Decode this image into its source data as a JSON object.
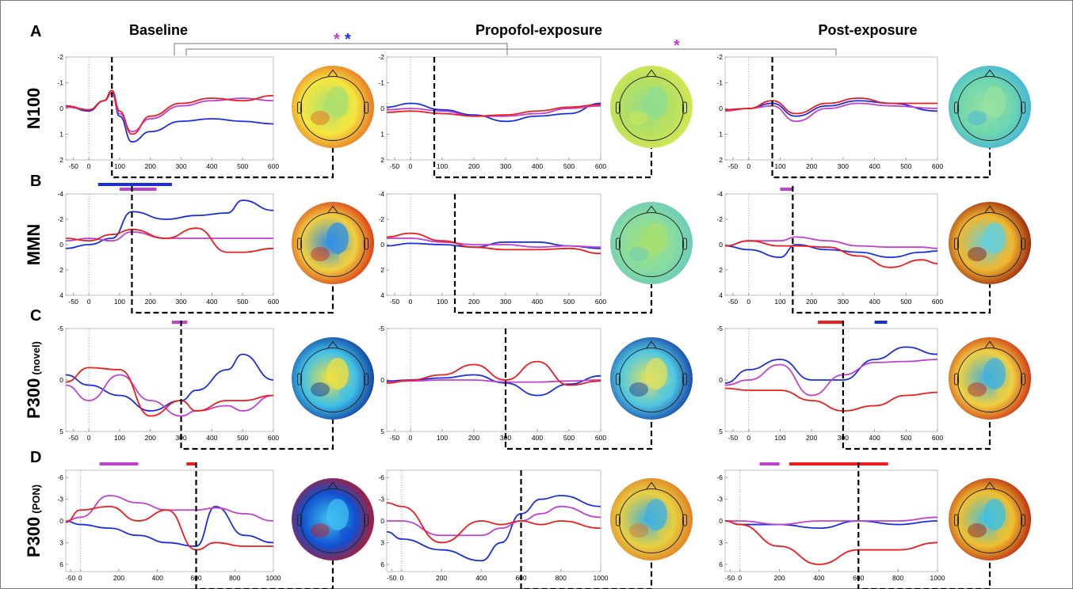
{
  "headers": {
    "baseline": "Baseline",
    "propofol": "Propofol-exposure",
    "post": "Post-exposure"
  },
  "rows": [
    {
      "letter": "A",
      "label": "N100",
      "sub": ""
    },
    {
      "letter": "B",
      "label": "MMN",
      "sub": ""
    },
    {
      "letter": "C",
      "label": "P300",
      "sub": "(novel)"
    },
    {
      "letter": "D",
      "label": "P300",
      "sub": "(PON)"
    }
  ],
  "stars": [
    "*",
    "*",
    "*"
  ],
  "colors": {
    "magenta": "#c040d0",
    "blue": "#1a2ee0",
    "red": "#ee1c1c",
    "frame": "#bfbfbf",
    "dash": "#000000"
  },
  "chart_data": [
    {
      "type": "line",
      "row": "N100",
      "condition": "Baseline",
      "xlim": [
        -75,
        600
      ],
      "ylim": [
        -2,
        2
      ],
      "y_reversed": true,
      "xticks": [
        "-50",
        "0",
        "100",
        "200",
        "300",
        "400",
        "500",
        "600"
      ],
      "yticks": [
        "-2",
        "-1",
        "0",
        "1",
        "2"
      ],
      "x": [
        -75,
        0,
        50,
        75,
        100,
        140,
        200,
        300,
        400,
        500,
        600
      ],
      "series": [
        {
          "color": "blue",
          "values": [
            -0.1,
            0.1,
            -0.3,
            -0.6,
            0.3,
            1.3,
            0.9,
            0.5,
            0.4,
            0.5,
            0.6
          ]
        },
        {
          "color": "magenta",
          "values": [
            -0.05,
            0.05,
            -0.3,
            -0.6,
            0.2,
            0.9,
            0.4,
            -0.1,
            -0.3,
            -0.4,
            -0.3
          ]
        },
        {
          "color": "red",
          "values": [
            -0.1,
            0.05,
            -0.3,
            -0.7,
            0.1,
            1.0,
            0.3,
            -0.2,
            -0.4,
            -0.3,
            -0.5
          ]
        }
      ],
      "marker_x": 75,
      "topomap": "n100-baseline"
    },
    {
      "type": "line",
      "row": "N100",
      "condition": "Propofol-exposure",
      "xlim": [
        -75,
        600
      ],
      "ylim": [
        -2,
        2
      ],
      "y_reversed": true,
      "xticks": [
        "-50",
        "0",
        "100",
        "200",
        "300",
        "400",
        "500",
        "600"
      ],
      "yticks": [
        "-2",
        "-1",
        "0",
        "1",
        "2"
      ],
      "x": [
        -75,
        0,
        100,
        200,
        300,
        400,
        500,
        600
      ],
      "series": [
        {
          "color": "blue",
          "values": [
            -0.05,
            -0.2,
            0.05,
            0.25,
            0.5,
            0.3,
            0.2,
            -0.2
          ]
        },
        {
          "color": "magenta",
          "values": [
            0.05,
            0.0,
            0.1,
            0.3,
            0.3,
            0.2,
            0.0,
            -0.1
          ]
        },
        {
          "color": "red",
          "values": [
            0.15,
            0.1,
            0.2,
            0.3,
            0.25,
            0.1,
            -0.05,
            -0.15
          ]
        }
      ],
      "marker_x": 75,
      "topomap": "n100-propofol"
    },
    {
      "type": "line",
      "row": "N100",
      "condition": "Post-exposure",
      "xlim": [
        -75,
        600
      ],
      "ylim": [
        -2,
        2
      ],
      "y_reversed": true,
      "xticks": [
        "-50",
        "0",
        "100",
        "200",
        "300",
        "400",
        "500",
        "600"
      ],
      "yticks": [
        "-2",
        "-1",
        "0",
        "1",
        "2"
      ],
      "x": [
        -75,
        0,
        75,
        150,
        250,
        350,
        450,
        600
      ],
      "series": [
        {
          "color": "blue",
          "values": [
            0.05,
            0.0,
            -0.2,
            0.3,
            -0.1,
            -0.3,
            -0.2,
            0.1
          ]
        },
        {
          "color": "magenta",
          "values": [
            0.1,
            0.0,
            -0.1,
            0.5,
            0.0,
            -0.2,
            -0.1,
            0.0
          ]
        },
        {
          "color": "red",
          "values": [
            0.05,
            0.0,
            -0.3,
            0.2,
            -0.2,
            -0.4,
            -0.2,
            -0.2
          ]
        }
      ],
      "marker_x": 75,
      "topomap": "n100-post"
    },
    {
      "type": "line",
      "row": "MMN",
      "condition": "Baseline",
      "xlim": [
        -75,
        600
      ],
      "ylim": [
        -4,
        4
      ],
      "y_reversed": true,
      "xticks": [
        "-50",
        "0",
        "100",
        "200",
        "300",
        "400",
        "500",
        "600"
      ],
      "yticks": [
        "-4",
        "-2",
        "0",
        "2",
        "4"
      ],
      "x": [
        -75,
        0,
        75,
        140,
        250,
        350,
        450,
        500,
        600
      ],
      "series": [
        {
          "color": "blue",
          "values": [
            0.3,
            0.0,
            -0.5,
            -2.6,
            -2.0,
            -2.3,
            -2.5,
            -3.5,
            -2.7
          ]
        },
        {
          "color": "magenta",
          "values": [
            -0.3,
            -0.5,
            -0.3,
            -1.0,
            -0.5,
            -0.5,
            -0.5,
            -0.5,
            -0.5
          ]
        },
        {
          "color": "red",
          "values": [
            -0.5,
            -0.3,
            -0.8,
            -1.2,
            -0.5,
            -1.3,
            0.6,
            0.6,
            0.3
          ]
        }
      ],
      "bars": [
        {
          "color": "blue",
          "from": 30,
          "to": 270
        },
        {
          "color": "magenta",
          "from": 100,
          "to": 220
        }
      ],
      "marker_x": 140,
      "topomap": "mmn-baseline"
    },
    {
      "type": "line",
      "row": "MMN",
      "condition": "Propofol-exposure",
      "xlim": [
        -75,
        600
      ],
      "ylim": [
        -4,
        4
      ],
      "y_reversed": true,
      "xticks": [
        "-50",
        "0",
        "100",
        "200",
        "300",
        "400",
        "500",
        "600"
      ],
      "yticks": [
        "-4",
        "-2",
        "0",
        "2",
        "4"
      ],
      "x": [
        -75,
        0,
        100,
        200,
        300,
        400,
        500,
        600
      ],
      "series": [
        {
          "color": "blue",
          "values": [
            0.1,
            -0.1,
            0.0,
            0.2,
            -0.2,
            -0.2,
            0.1,
            0.3
          ]
        },
        {
          "color": "magenta",
          "values": [
            -0.5,
            -0.5,
            -0.2,
            0.0,
            0.0,
            0.2,
            0.1,
            0.2
          ]
        },
        {
          "color": "red",
          "values": [
            -0.6,
            -0.9,
            -0.3,
            0.2,
            0.4,
            0.4,
            0.3,
            0.7
          ]
        }
      ],
      "marker_x": 140,
      "topomap": "mmn-propofol"
    },
    {
      "type": "line",
      "row": "MMN",
      "condition": "Post-exposure",
      "xlim": [
        -75,
        600
      ],
      "ylim": [
        -4,
        4
      ],
      "y_reversed": true,
      "xticks": [
        "-50",
        "0",
        "100",
        "200",
        "300",
        "400",
        "500",
        "600"
      ],
      "yticks": [
        "-4",
        "-2",
        "0",
        "2",
        "4"
      ],
      "x": [
        -75,
        0,
        100,
        150,
        250,
        350,
        450,
        550,
        600
      ],
      "series": [
        {
          "color": "blue",
          "values": [
            0.1,
            0.4,
            1.0,
            0.0,
            0.4,
            0.6,
            1.0,
            0.6,
            0.5
          ]
        },
        {
          "color": "magenta",
          "values": [
            0.1,
            -0.3,
            -0.3,
            -0.6,
            -0.3,
            0.1,
            0.2,
            0.2,
            0.3
          ]
        },
        {
          "color": "red",
          "values": [
            0.1,
            -0.3,
            0.1,
            0.1,
            0.2,
            0.9,
            1.8,
            1.2,
            1.5
          ]
        }
      ],
      "bars": [
        {
          "color": "magenta",
          "from": 100,
          "to": 140
        }
      ],
      "marker_x": 140,
      "topomap": "mmn-post"
    },
    {
      "type": "line",
      "row": "P300 (novel)",
      "condition": "Baseline",
      "xlim": [
        -75,
        600
      ],
      "ylim": [
        -5,
        5
      ],
      "y_reversed": true,
      "xticks": [
        "-50",
        "0",
        "100",
        "200",
        "300",
        "400",
        "500",
        "600"
      ],
      "yticks": [
        "-5",
        "0",
        "5"
      ],
      "x": [
        -75,
        0,
        100,
        200,
        300,
        350,
        450,
        500,
        600
      ],
      "series": [
        {
          "color": "blue",
          "values": [
            -0.5,
            0.5,
            1.5,
            3.0,
            2.0,
            1.0,
            -1.0,
            -2.5,
            0.0
          ]
        },
        {
          "color": "magenta",
          "values": [
            0.5,
            2.0,
            -0.5,
            2.0,
            3.5,
            3.0,
            2.5,
            3.0,
            1.5
          ]
        },
        {
          "color": "red",
          "values": [
            0.2,
            -1.2,
            -1.0,
            3.5,
            2.0,
            3.0,
            2.0,
            2.0,
            1.5
          ]
        }
      ],
      "bars": [
        {
          "color": "magenta",
          "from": 270,
          "to": 320
        }
      ],
      "marker_x": 300,
      "topomap": "p300novel-baseline"
    },
    {
      "type": "line",
      "row": "P300 (novel)",
      "condition": "Propofol-exposure",
      "xlim": [
        -75,
        600
      ],
      "ylim": [
        -5,
        5
      ],
      "y_reversed": true,
      "xticks": [
        "-50",
        "0",
        "100",
        "200",
        "300",
        "400",
        "500",
        "600"
      ],
      "yticks": [
        "-5",
        "0",
        "5"
      ],
      "x": [
        -75,
        0,
        100,
        200,
        300,
        400,
        500,
        600
      ],
      "series": [
        {
          "color": "blue",
          "values": [
            0.1,
            0.0,
            -0.2,
            -0.5,
            0.3,
            1.5,
            0.4,
            -0.4
          ]
        },
        {
          "color": "magenta",
          "values": [
            0.2,
            0.1,
            0.0,
            0.0,
            0.2,
            0.2,
            0.1,
            0.0
          ]
        },
        {
          "color": "red",
          "values": [
            0.3,
            0.0,
            -0.5,
            -1.5,
            0.0,
            -1.8,
            0.5,
            0.1
          ]
        }
      ],
      "marker_x": 300,
      "topomap": "p300novel-propofol"
    },
    {
      "type": "line",
      "row": "P300 (novel)",
      "condition": "Post-exposure",
      "xlim": [
        -75,
        600
      ],
      "ylim": [
        -5,
        5
      ],
      "y_reversed": true,
      "xticks": [
        "-50",
        "0",
        "100",
        "200",
        "300",
        "400",
        "500",
        "600"
      ],
      "yticks": [
        "-5",
        "0",
        "5"
      ],
      "x": [
        -75,
        0,
        100,
        200,
        300,
        400,
        500,
        600
      ],
      "series": [
        {
          "color": "blue",
          "values": [
            0.3,
            -1.0,
            -2.0,
            0.0,
            0.0,
            -2.0,
            -3.2,
            -2.5
          ]
        },
        {
          "color": "magenta",
          "values": [
            0.5,
            0.0,
            -1.5,
            1.5,
            -0.5,
            -1.7,
            -1.8,
            -2.0
          ]
        },
        {
          "color": "red",
          "values": [
            0.8,
            1.0,
            1.0,
            2.0,
            3.0,
            2.5,
            1.5,
            1.2
          ]
        }
      ],
      "bars": [
        {
          "color": "red",
          "from": 220,
          "to": 300
        },
        {
          "color": "blue",
          "from": 400,
          "to": 440
        }
      ],
      "marker_x": 300,
      "topomap": "p300novel-post"
    },
    {
      "type": "line",
      "row": "P300 (PON)",
      "condition": "Baseline",
      "xlim": [
        -75,
        1000
      ],
      "ylim": [
        -7,
        7
      ],
      "y_reversed": true,
      "xticks": [
        "-50",
        "0",
        "200",
        "400",
        "600",
        "800",
        "1000"
      ],
      "yticks": [
        "-6",
        "-3",
        "0",
        "3",
        "6"
      ],
      "x": [
        -75,
        0,
        150,
        300,
        450,
        600,
        700,
        850,
        1000
      ],
      "series": [
        {
          "color": "blue",
          "values": [
            0.0,
            0.5,
            1.0,
            2.0,
            3.0,
            3.5,
            -2.0,
            2.0,
            3.0
          ]
        },
        {
          "color": "magenta",
          "values": [
            0.0,
            -0.5,
            -3.5,
            -2.5,
            -1.5,
            -1.5,
            -1.8,
            -1.0,
            0.0
          ]
        },
        {
          "color": "red",
          "values": [
            0.2,
            -1.5,
            -2.0,
            0.0,
            -1.5,
            4.0,
            3.0,
            3.5,
            3.5
          ]
        }
      ],
      "bars": [
        {
          "color": "magenta",
          "from": 100,
          "to": 300
        },
        {
          "color": "red",
          "from": 550,
          "to": 600
        }
      ],
      "marker_x": 600,
      "topomap": "p300pon-baseline"
    },
    {
      "type": "line",
      "row": "P300 (PON)",
      "condition": "Propofol-exposure",
      "xlim": [
        -75,
        1000
      ],
      "ylim": [
        -7,
        7
      ],
      "y_reversed": true,
      "xticks": [
        "-50",
        "0",
        "200",
        "400",
        "600",
        "800",
        "1000"
      ],
      "yticks": [
        "-6",
        "-3",
        "0",
        "3",
        "6"
      ],
      "x": [
        -75,
        0,
        200,
        400,
        500,
        600,
        700,
        800,
        1000
      ],
      "series": [
        {
          "color": "blue",
          "values": [
            1.5,
            2.5,
            4.0,
            5.5,
            3.0,
            -1.0,
            -3.0,
            -3.5,
            -2.0
          ]
        },
        {
          "color": "magenta",
          "values": [
            0.0,
            0.0,
            2.0,
            2.0,
            1.0,
            0.0,
            -1.0,
            -2.0,
            -0.5
          ]
        },
        {
          "color": "red",
          "values": [
            -2.5,
            -2.0,
            3.0,
            0.0,
            0.5,
            0.0,
            0.5,
            0.0,
            1.0
          ]
        }
      ],
      "marker_x": 600,
      "topomap": "p300pon-propofol"
    },
    {
      "type": "line",
      "row": "P300 (PON)",
      "condition": "Post-exposure",
      "xlim": [
        -75,
        1000
      ],
      "ylim": [
        -7,
        7
      ],
      "y_reversed": true,
      "xticks": [
        "-50",
        "0",
        "200",
        "400",
        "600",
        "800",
        "1000"
      ],
      "yticks": [
        "-6",
        "-3",
        "0",
        "3",
        "6"
      ],
      "x": [
        -75,
        0,
        200,
        400,
        600,
        800,
        1000
      ],
      "series": [
        {
          "color": "blue",
          "values": [
            0.0,
            0.5,
            0.5,
            1.0,
            0.0,
            0.5,
            0.0
          ]
        },
        {
          "color": "magenta",
          "values": [
            0.0,
            0.0,
            0.5,
            0.0,
            0.0,
            0.0,
            -0.5
          ]
        },
        {
          "color": "red",
          "values": [
            0.0,
            0.5,
            3.5,
            6.0,
            4.0,
            4.0,
            3.0
          ]
        }
      ],
      "bars": [
        {
          "color": "magenta",
          "from": 100,
          "to": 200
        },
        {
          "color": "red",
          "from": 250,
          "to": 750
        }
      ],
      "marker_x": 600,
      "topomap": "p300pon-post"
    }
  ]
}
